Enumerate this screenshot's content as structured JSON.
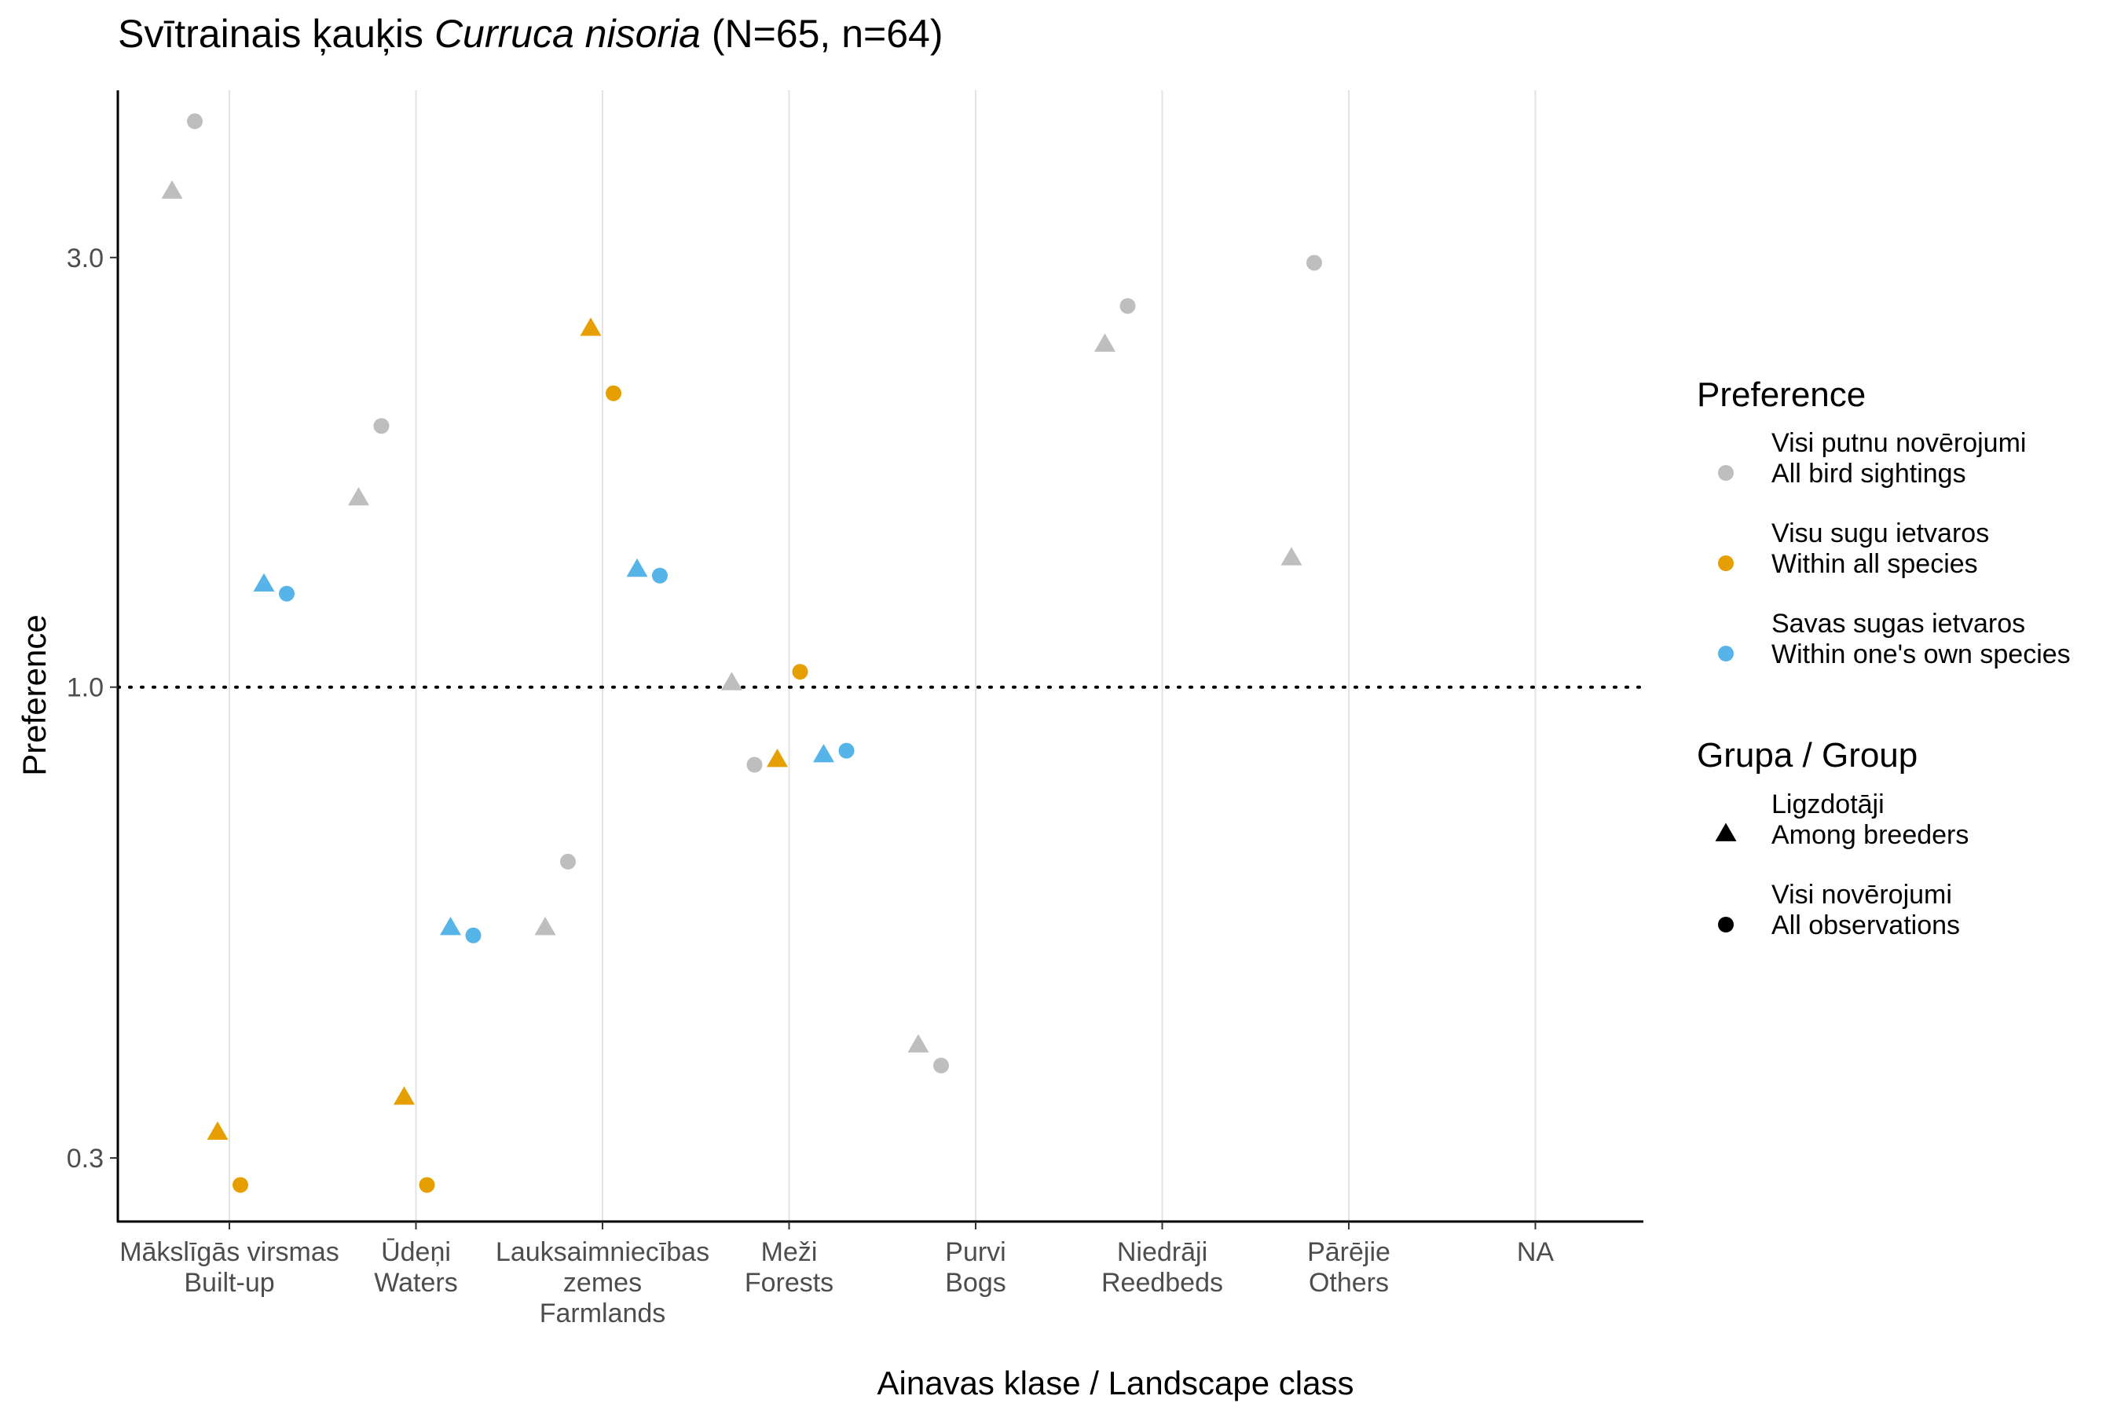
{
  "title": {
    "prefix": "Svītrainais ķauķis ",
    "species": "Curruca nisoria",
    "suffix": " (N=65, n=64)"
  },
  "chart_data": {
    "type": "scatter",
    "xlabel": "Ainavas klase / Landscape class",
    "ylabel": "Preference",
    "y_scale": "log",
    "ylim": [
      0.255,
      4.6
    ],
    "yticks": [
      0.3,
      1.0,
      3.0
    ],
    "ytick_labels": [
      "0.3",
      "1.0",
      "3.0"
    ],
    "reference_line": 1.0,
    "grid": "vertical major only",
    "categories": [
      [
        "Mākslīgās virsmas",
        "Built-up"
      ],
      [
        "Ūdeņi",
        "Waters"
      ],
      [
        "Lauksaimniecības",
        "zemes",
        "Farmlands"
      ],
      [
        "Meži",
        "Forests"
      ],
      [
        "Purvi",
        "Bogs"
      ],
      [
        "Niedrāji",
        "Reedbeds"
      ],
      [
        "Pārējie",
        "Others"
      ],
      [
        "NA"
      ]
    ],
    "series": [
      {
        "name": "Visi putnu novērojumi / All bird sightings — Ligzdotāji / Among breeders",
        "color": "#BEBEBE",
        "shape": "triangle",
        "values": [
          3.55,
          1.62,
          0.54,
          1.01,
          0.4,
          2.4,
          1.39,
          null
        ]
      },
      {
        "name": "Visi putnu novērojumi / All bird sightings — Visi novērojumi / All observations",
        "color": "#BEBEBE",
        "shape": "circle",
        "values": [
          4.25,
          1.95,
          0.64,
          0.82,
          0.38,
          2.65,
          2.96,
          null
        ]
      },
      {
        "name": "Visu sugu ietvaros / Within all species — Ligzdotāji / Among breeders",
        "color": "#E69F00",
        "shape": "triangle",
        "values": [
          0.32,
          0.35,
          2.5,
          0.83,
          null,
          null,
          null,
          null
        ]
      },
      {
        "name": "Visu sugu ietvaros / Within all species — Visi novērojumi / All observations",
        "color": "#E69F00",
        "shape": "circle",
        "values": [
          0.28,
          0.28,
          2.12,
          1.04,
          null,
          null,
          null,
          null
        ]
      },
      {
        "name": "Savas sugas ietvaros / Within one's own species — Ligzdotāji / Among breeders",
        "color": "#56B4E9",
        "shape": "triangle",
        "values": [
          1.3,
          0.54,
          1.35,
          0.84,
          null,
          null,
          null,
          null
        ]
      },
      {
        "name": "Savas sugas ietvaros / Within one's own species — Visi novērojumi / All observations",
        "color": "#56B4E9",
        "shape": "circle",
        "values": [
          1.27,
          0.53,
          1.33,
          0.85,
          null,
          null,
          null,
          null
        ]
      }
    ],
    "legend": {
      "position": "right",
      "preference_title": "Preference",
      "preference_items": [
        {
          "line1": "Visi putnu novērojumi",
          "line2": "All bird sightings",
          "color": "#BEBEBE"
        },
        {
          "line1": "Visu sugu ietvaros",
          "line2": "Within all species",
          "color": "#E69F00"
        },
        {
          "line1": "Savas sugas ietvaros",
          "line2": "Within one's own species",
          "color": "#56B4E9"
        }
      ],
      "group_title": "Grupa / Group",
      "group_items": [
        {
          "line1": "Ligzdotāji",
          "line2": "Among breeders",
          "shape": "triangle"
        },
        {
          "line1": "Visi novērojumi",
          "line2": "All observations",
          "shape": "circle"
        }
      ]
    }
  }
}
